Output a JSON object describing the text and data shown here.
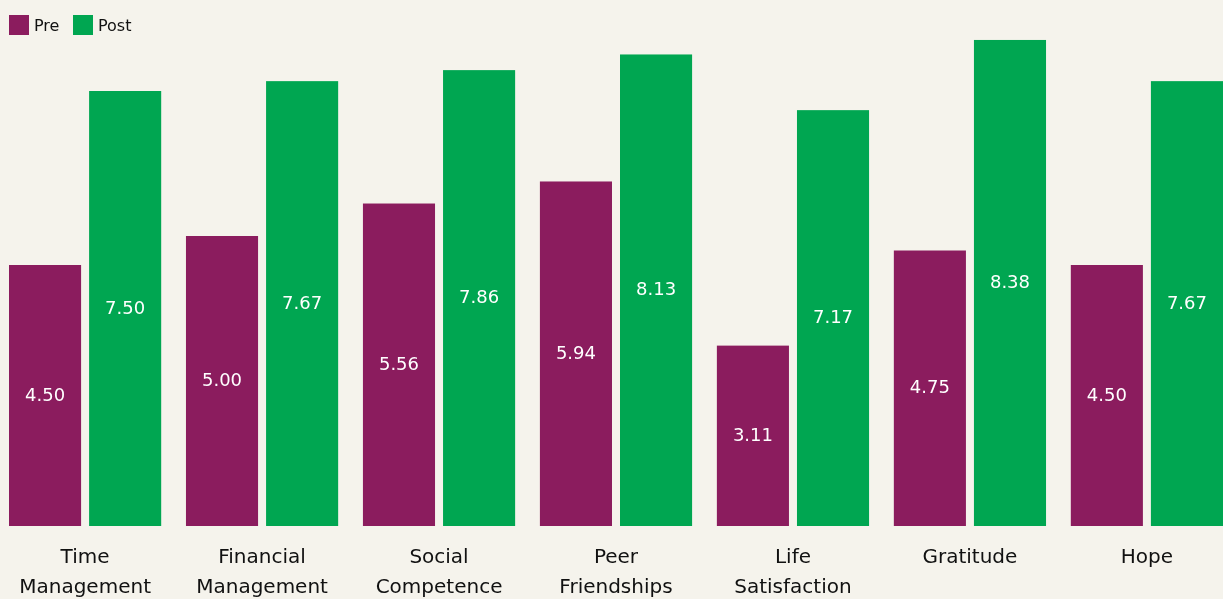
{
  "chart_data": {
    "type": "bar",
    "categories": [
      "Time Management",
      "Financial Management",
      "Social Competence",
      "Peer Friendships",
      "Life Satisfaction",
      "Gratitude",
      "Hope"
    ],
    "series": [
      {
        "name": "Pre",
        "color": "#8b1c5e",
        "values": [
          4.5,
          5.0,
          5.56,
          5.94,
          3.11,
          4.75,
          4.5
        ],
        "value_labels": [
          "4.50",
          "5.00",
          "5.56",
          "5.94",
          "3.11",
          "4.75",
          "4.50"
        ]
      },
      {
        "name": "Post",
        "color": "#00a651",
        "values": [
          7.5,
          7.67,
          7.86,
          8.13,
          7.17,
          8.38,
          7.67
        ],
        "value_labels": [
          "7.50",
          "7.67",
          "7.86",
          "8.13",
          "7.17",
          "8.38",
          "7.67"
        ]
      }
    ],
    "ylim": [
      0,
      9
    ],
    "legend": "top left",
    "grid": false
  }
}
